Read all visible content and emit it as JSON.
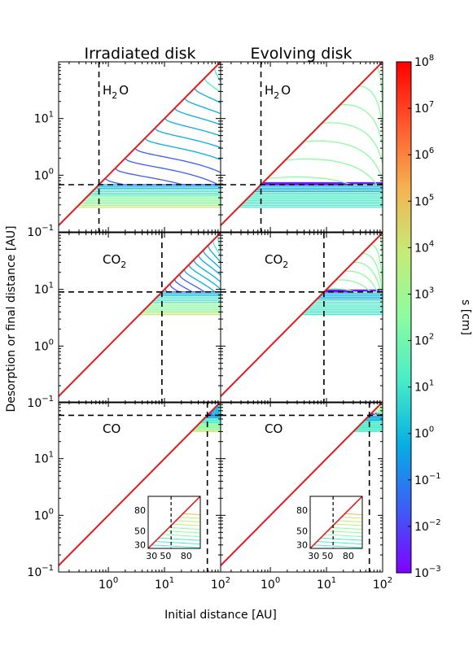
{
  "chart_data": {
    "type": "line",
    "column_titles": [
      "Irradiated disk",
      "Evolving disk"
    ],
    "xlabel": "Initial distance [AU]",
    "ylabel": "Desorption or final distance [AU]",
    "xscale": "log",
    "yscale": "log",
    "xlim": [
      0.13,
      100
    ],
    "x_ticks": [
      "10^0",
      "10^1",
      "10^2"
    ],
    "colorbar": {
      "label": "s [cm]",
      "scale": "log",
      "range": [
        0.001,
        100000000
      ],
      "ticks": [
        "10^8",
        "10^7",
        "10^6",
        "10^5",
        "10^4",
        "10^3",
        "10^2",
        "10^1",
        "10^0",
        "10^-1",
        "10^-2",
        "10^-3"
      ],
      "colormap": "rainbow",
      "colors": [
        "#8000ff",
        "#3c5ef6",
        "#06aee3",
        "#48ecc8",
        "#8cfca0",
        "#c4ec78",
        "#f4b452",
        "#ff5a2e",
        "#ff0000"
      ]
    },
    "rows": [
      {
        "species": "H2O",
        "species_text": "H",
        "species_sub": "2",
        "species_tail": "O",
        "ylim": [
          0.1,
          100
        ],
        "y_ticks": [
          "10^-1",
          "10^0",
          "10^1"
        ],
        "snowline_au": 0.68,
        "one_to_one_line_color": "#e41a1c"
      },
      {
        "species": "CO2",
        "species_text": "CO",
        "species_sub": "2",
        "species_tail": "",
        "ylim": [
          0.1,
          100
        ],
        "y_ticks": [
          "10^-1",
          "10^0",
          "10^1"
        ],
        "snowline_au": 9.0,
        "one_to_one_line_color": "#e41a1c"
      },
      {
        "species": "CO",
        "species_text": "CO",
        "species_sub": "",
        "species_tail": "",
        "ylim": [
          0.1,
          100
        ],
        "y_ticks": [
          "10^-1",
          "10^0",
          "10^1"
        ],
        "snowline_au": 58,
        "one_to_one_line_color": "#e41a1c",
        "inset": {
          "xlim": [
            25,
            100
          ],
          "ylim": [
            25,
            100
          ],
          "x_ticks": [
            "30",
            "50",
            "80"
          ],
          "y_ticks": [
            "30",
            "50",
            "80"
          ]
        }
      }
    ]
  }
}
